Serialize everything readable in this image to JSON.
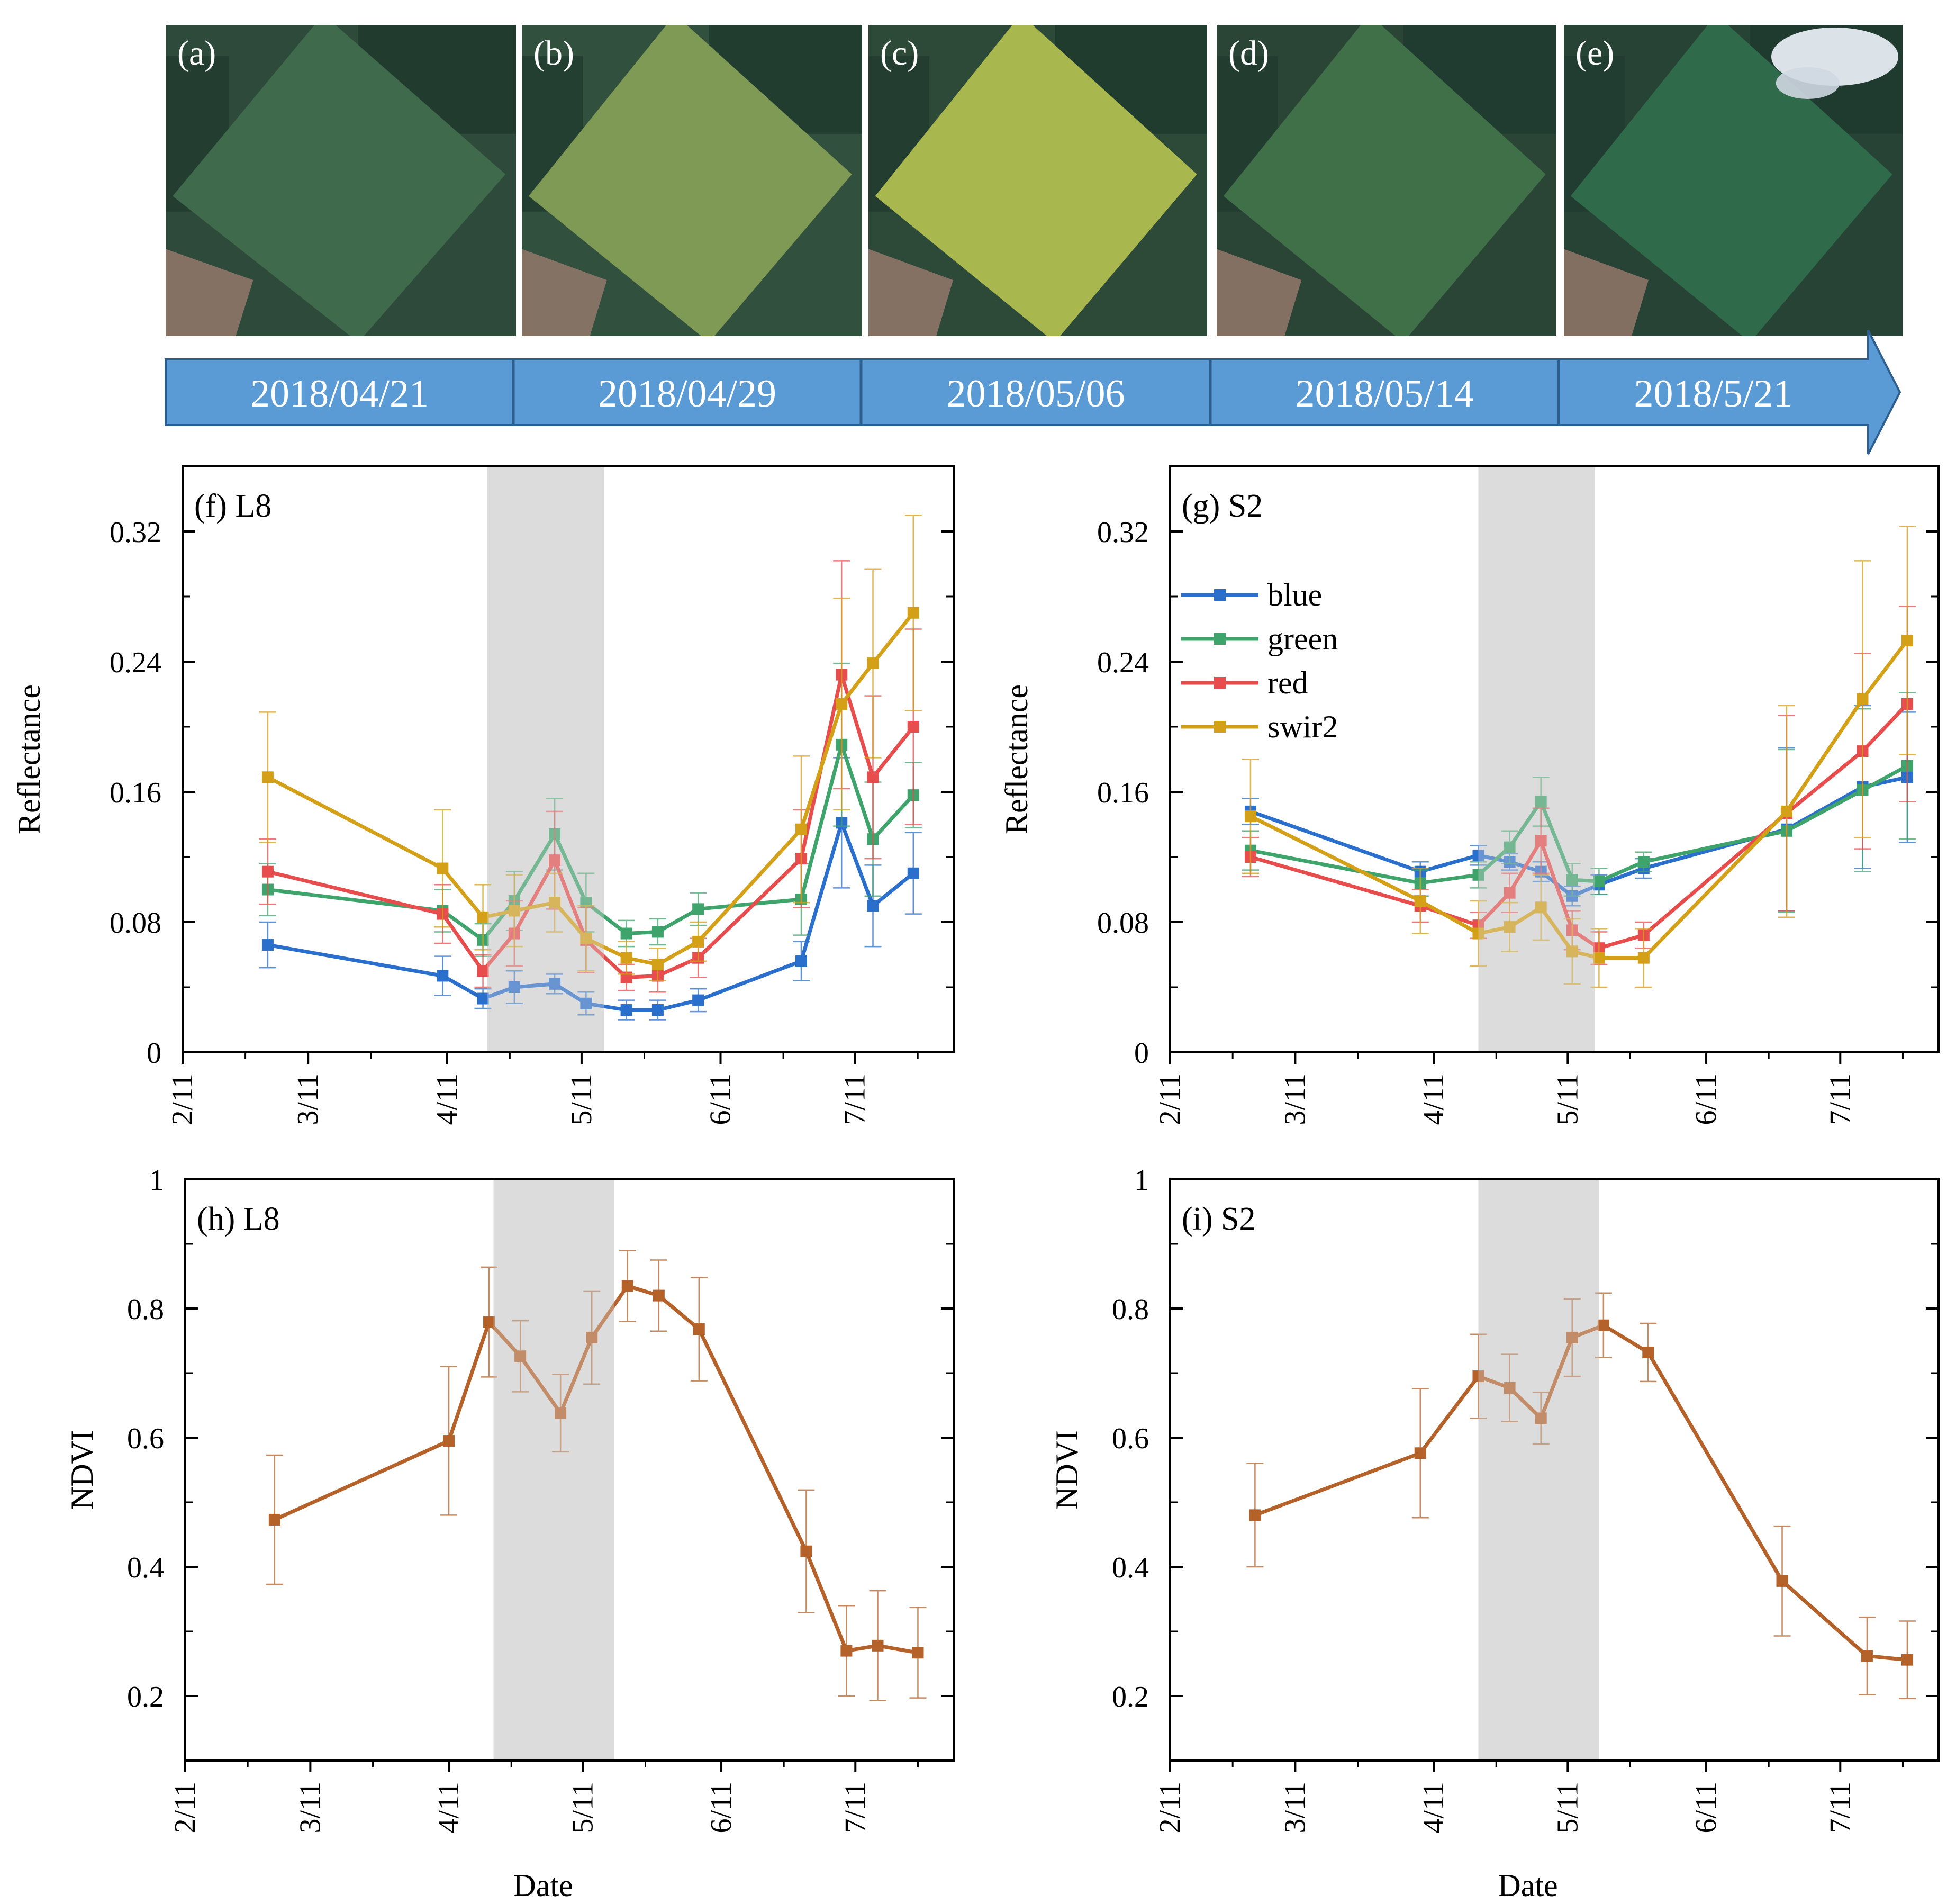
{
  "photo_panels": [
    {
      "label": "(a)",
      "date": "2018/04/21",
      "field": "#3f6a4c",
      "bg": "#2e4a3a"
    },
    {
      "label": "(b)",
      "date": "2018/04/29",
      "field": "#7f9a55",
      "bg": "#31503d"
    },
    {
      "label": "(c)",
      "date": "2018/05/06",
      "field": "#a9b84e",
      "bg": "#2d4a39"
    },
    {
      "label": "(d)",
      "date": "2018/05/14",
      "field": "#3f7048",
      "bg": "#2a4536"
    },
    {
      "label": "(e)",
      "date": "2018/5/21",
      "field": "#2f6a4a",
      "bg": "#274335"
    }
  ],
  "timeline_color": "#5b9bd5",
  "series_colors": {
    "blue": "#2a6fcc",
    "green": "#3fa46c",
    "red": "#e84d4d",
    "swir2": "#d4a017",
    "ndvi": "#b5622a"
  },
  "chart_data": [
    {
      "id": "f",
      "type": "line",
      "panel_label": "(f) L8",
      "ylabel": "Reflectance",
      "xlim": [
        0,
        172
      ],
      "ylim": [
        0,
        0.36
      ],
      "yticks": [
        "0",
        "0.08",
        "0.16",
        "0.24",
        "0.32"
      ],
      "xticks": [
        {
          "label": "2/11",
          "x": 0
        },
        {
          "label": "3/11",
          "x": 28
        },
        {
          "label": "4/11",
          "x": 59
        },
        {
          "label": "5/11",
          "x": 89
        },
        {
          "label": "6/11",
          "x": 120
        },
        {
          "label": "7/11",
          "x": 150
        }
      ],
      "shade": [
        68,
        94
      ],
      "legend": [],
      "series": [
        {
          "name": "blue",
          "x": [
            19,
            58,
            67,
            74,
            83,
            90,
            99,
            106,
            115,
            138,
            147,
            154,
            163
          ],
          "values": [
            0.066,
            0.047,
            0.033,
            0.04,
            0.042,
            0.03,
            0.026,
            0.026,
            0.032,
            0.056,
            0.141,
            0.09,
            0.11
          ],
          "err": [
            0.014,
            0.012,
            0.006,
            0.01,
            0.006,
            0.007,
            0.006,
            0.006,
            0.007,
            0.012,
            0.04,
            0.025,
            0.025
          ]
        },
        {
          "name": "green",
          "x": [
            19,
            58,
            67,
            74,
            83,
            90,
            99,
            106,
            115,
            138,
            147,
            154,
            163
          ],
          "values": [
            0.1,
            0.087,
            0.069,
            0.093,
            0.134,
            0.092,
            0.073,
            0.074,
            0.088,
            0.094,
            0.189,
            0.131,
            0.158
          ],
          "err": [
            0.016,
            0.013,
            0.01,
            0.018,
            0.022,
            0.018,
            0.008,
            0.008,
            0.01,
            0.022,
            0.05,
            0.035,
            0.02
          ]
        },
        {
          "name": "red",
          "x": [
            19,
            58,
            67,
            74,
            83,
            90,
            99,
            106,
            115,
            138,
            147,
            154,
            163
          ],
          "values": [
            0.111,
            0.085,
            0.05,
            0.073,
            0.118,
            0.069,
            0.046,
            0.047,
            0.058,
            0.119,
            0.232,
            0.169,
            0.2
          ],
          "err": [
            0.02,
            0.018,
            0.01,
            0.02,
            0.03,
            0.02,
            0.008,
            0.01,
            0.012,
            0.03,
            0.07,
            0.05,
            0.06
          ]
        },
        {
          "name": "swir2",
          "x": [
            19,
            58,
            67,
            74,
            83,
            90,
            99,
            106,
            115,
            138,
            147,
            154,
            163
          ],
          "values": [
            0.169,
            0.113,
            0.083,
            0.087,
            0.092,
            0.07,
            0.058,
            0.054,
            0.068,
            0.137,
            0.214,
            0.239,
            0.27
          ],
          "err": [
            0.04,
            0.036,
            0.02,
            0.022,
            0.018,
            0.02,
            0.01,
            0.01,
            0.012,
            0.045,
            0.065,
            0.058,
            0.06
          ]
        }
      ]
    },
    {
      "id": "g",
      "type": "line",
      "panel_label": "(g) S2",
      "ylabel": "Reflectance",
      "xlim": [
        0,
        172
      ],
      "ylim": [
        0,
        0.36
      ],
      "yticks": [
        "0",
        "0.08",
        "0.16",
        "0.24",
        "0.32"
      ],
      "xticks": [
        {
          "label": "2/11",
          "x": 0
        },
        {
          "label": "3/11",
          "x": 28
        },
        {
          "label": "4/11",
          "x": 59
        },
        {
          "label": "5/11",
          "x": 89
        },
        {
          "label": "6/11",
          "x": 120
        },
        {
          "label": "7/11",
          "x": 150
        }
      ],
      "shade": [
        69,
        95
      ],
      "legend": [
        "blue",
        "green",
        "red",
        "swir2"
      ],
      "series": [
        {
          "name": "blue",
          "x": [
            18,
            56,
            69,
            76,
            83,
            90,
            96,
            106,
            138,
            155,
            165
          ],
          "values": [
            0.148,
            0.111,
            0.121,
            0.117,
            0.111,
            0.096,
            0.103,
            0.113,
            0.137,
            0.163,
            0.169
          ],
          "err": [
            0.008,
            0.006,
            0.006,
            0.005,
            0.006,
            0.006,
            0.006,
            0.006,
            0.05,
            0.05,
            0.04
          ]
        },
        {
          "name": "green",
          "x": [
            18,
            56,
            69,
            76,
            83,
            90,
            96,
            106,
            138,
            155,
            165
          ],
          "values": [
            0.124,
            0.104,
            0.109,
            0.126,
            0.154,
            0.106,
            0.105,
            0.117,
            0.136,
            0.161,
            0.176
          ],
          "err": [
            0.012,
            0.008,
            0.008,
            0.01,
            0.015,
            0.01,
            0.008,
            0.006,
            0.05,
            0.05,
            0.045
          ]
        },
        {
          "name": "red",
          "x": [
            18,
            56,
            69,
            76,
            83,
            90,
            96,
            106,
            138,
            155,
            165
          ],
          "values": [
            0.12,
            0.09,
            0.078,
            0.098,
            0.13,
            0.075,
            0.064,
            0.072,
            0.147,
            0.185,
            0.214
          ],
          "err": [
            0.012,
            0.01,
            0.008,
            0.012,
            0.02,
            0.012,
            0.01,
            0.008,
            0.06,
            0.06,
            0.06
          ]
        },
        {
          "name": "swir2",
          "x": [
            18,
            56,
            69,
            76,
            83,
            90,
            96,
            106,
            138,
            155,
            165
          ],
          "values": [
            0.145,
            0.093,
            0.073,
            0.077,
            0.089,
            0.062,
            0.058,
            0.058,
            0.148,
            0.217,
            0.253
          ],
          "err": [
            0.035,
            0.02,
            0.02,
            0.015,
            0.02,
            0.02,
            0.018,
            0.018,
            0.065,
            0.085,
            0.07
          ]
        }
      ]
    },
    {
      "id": "h",
      "type": "line",
      "panel_label": "(h) L8",
      "ylabel": "NDVI",
      "xlabel": "Date",
      "xlim": [
        0,
        172
      ],
      "ylim": [
        0.1,
        1.0
      ],
      "yticks": [
        "0.2",
        "0.4",
        "0.6",
        "0.8",
        "1"
      ],
      "xticks": [
        {
          "label": "2/11",
          "x": 0
        },
        {
          "label": "3/11",
          "x": 28
        },
        {
          "label": "4/11",
          "x": 59
        },
        {
          "label": "5/11",
          "x": 89
        },
        {
          "label": "6/11",
          "x": 120
        },
        {
          "label": "7/11",
          "x": 150
        }
      ],
      "shade": [
        69,
        96
      ],
      "legend": [],
      "series": [
        {
          "name": "ndvi",
          "x": [
            20,
            59,
            68,
            75,
            84,
            91,
            99,
            106,
            115,
            139,
            148,
            155,
            164
          ],
          "values": [
            0.473,
            0.595,
            0.779,
            0.726,
            0.638,
            0.755,
            0.835,
            0.82,
            0.768,
            0.424,
            0.27,
            0.278,
            0.267
          ],
          "err": [
            0.1,
            0.115,
            0.085,
            0.055,
            0.06,
            0.072,
            0.055,
            0.055,
            0.08,
            0.095,
            0.07,
            0.085,
            0.07
          ]
        }
      ]
    },
    {
      "id": "i",
      "type": "line",
      "panel_label": "(i) S2",
      "ylabel": "NDVI",
      "xlabel": "Date",
      "xlim": [
        0,
        172
      ],
      "ylim": [
        0.1,
        1.0
      ],
      "yticks": [
        "0.2",
        "0.4",
        "0.6",
        "0.8",
        "1"
      ],
      "xticks": [
        {
          "label": "2/11",
          "x": 0
        },
        {
          "label": "3/11",
          "x": 28
        },
        {
          "label": "4/11",
          "x": 59
        },
        {
          "label": "5/11",
          "x": 89
        },
        {
          "label": "6/11",
          "x": 120
        },
        {
          "label": "7/11",
          "x": 150
        }
      ],
      "shade": [
        69,
        96
      ],
      "legend": [],
      "series": [
        {
          "name": "ndvi",
          "x": [
            19,
            56,
            69,
            76,
            83,
            90,
            97,
            107,
            137,
            156,
            165
          ],
          "values": [
            0.48,
            0.576,
            0.695,
            0.677,
            0.63,
            0.755,
            0.774,
            0.732,
            0.378,
            0.262,
            0.256
          ],
          "err": [
            0.08,
            0.1,
            0.065,
            0.052,
            0.04,
            0.06,
            0.05,
            0.045,
            0.085,
            0.06,
            0.06
          ]
        }
      ]
    }
  ]
}
